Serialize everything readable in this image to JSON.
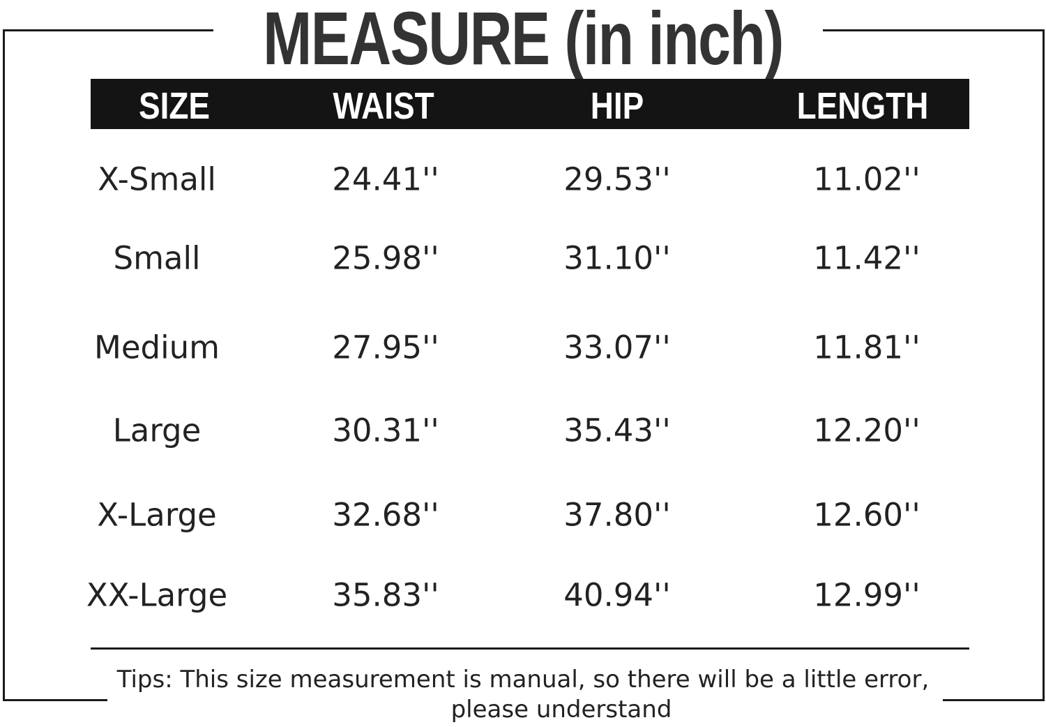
{
  "title": "MEASURE (in inch)",
  "headers": [
    "SIZE",
    "WAIST",
    "HIP",
    "LENGTH"
  ],
  "rows": [
    [
      "X-Small",
      "24.41''",
      "29.53''",
      "11.02''"
    ],
    [
      "Small",
      "25.98''",
      "31.10''",
      "11.42''"
    ],
    [
      "Medium",
      "27.95''",
      "33.07''",
      "11.81''"
    ],
    [
      "Large",
      "30.31''",
      "35.43''",
      "12.20''"
    ],
    [
      "X-Large",
      "32.68''",
      "37.80''",
      "12.60''"
    ],
    [
      "XX-Large",
      "35.83''",
      "40.94''",
      "12.99''"
    ]
  ],
  "tips": {
    "line1": "Tips:  This size measurement is manual, so there will be a little error,",
    "line2": "please understand"
  },
  "colors": {
    "header_bg": "#141414",
    "header_text": "#ffffff",
    "title": "#333333"
  }
}
